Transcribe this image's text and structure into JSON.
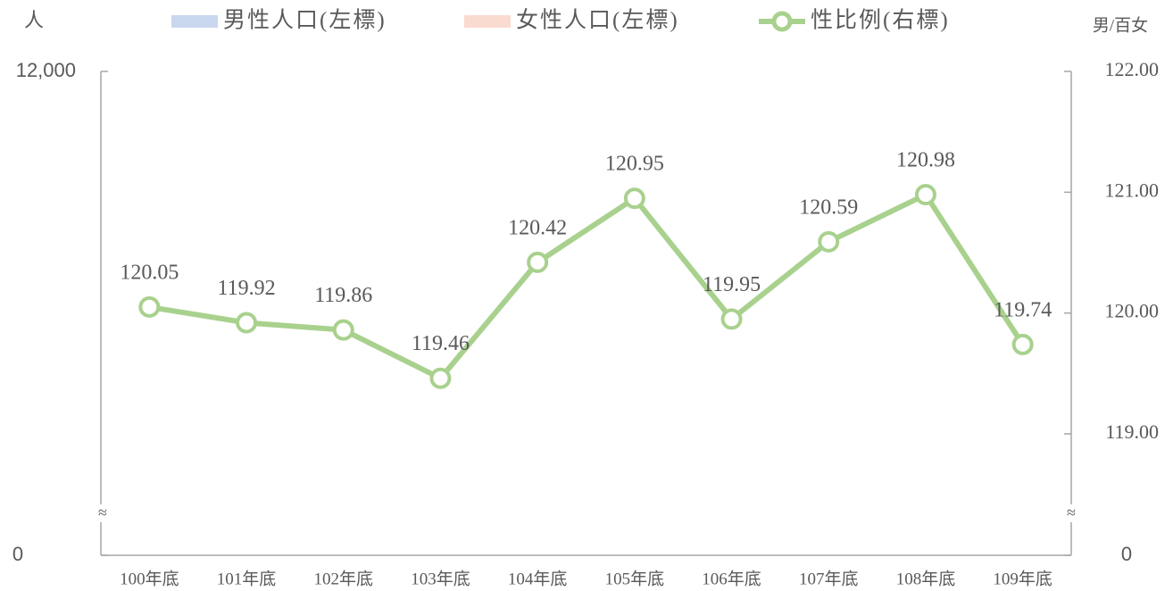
{
  "chart_data": {
    "type": "line",
    "y_label": "人",
    "y2_label": "男/百女",
    "categories": [
      "100年底",
      "101年底",
      "102年底",
      "103年底",
      "104年底",
      "105年底",
      "106年底",
      "107年底",
      "108年底",
      "109年底"
    ],
    "series": [
      {
        "name": "男性人口(左標)",
        "color": "#c9d7ee",
        "text_color": "#2e75b6",
        "kind": "bar",
        "values": [
          null,
          null,
          null,
          null,
          null,
          null,
          null,
          null,
          null,
          null
        ]
      },
      {
        "name": "女性人口(左標)",
        "color": "#fadbd0",
        "text_color": "#c55a11",
        "kind": "bar",
        "values": [
          null,
          null,
          null,
          null,
          null,
          null,
          null,
          null,
          null,
          null
        ]
      },
      {
        "name": "性比例(右標)",
        "color": "#a9d18e",
        "text_color": "#548235",
        "label_color": "#6a9a3f",
        "kind": "line",
        "axis": "y2",
        "values": [
          120.05,
          119.92,
          119.86,
          119.46,
          120.42,
          120.95,
          119.95,
          120.59,
          120.98,
          119.74
        ]
      }
    ],
    "ylim": [
      0,
      12000
    ],
    "yticks": [
      0,
      {
        "value": 12000,
        "label": "12,000"
      }
    ],
    "y2lim": [
      0,
      122
    ],
    "y2ticks": [
      0,
      {
        "value": 119,
        "label": "119.00"
      },
      {
        "value": 120,
        "label": "120.00"
      },
      {
        "value": 121,
        "label": "121.00"
      },
      {
        "value": 122,
        "label": "122.00"
      }
    ],
    "axis_break": true,
    "legend": "top",
    "grid": false
  }
}
